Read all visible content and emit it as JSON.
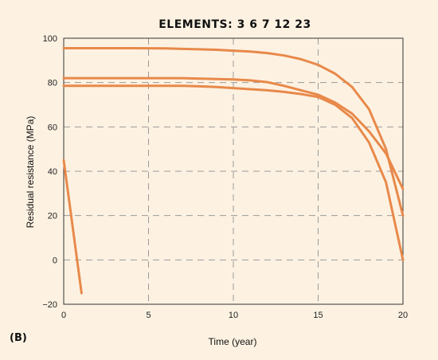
{
  "panel_label": "(B)",
  "chart_data": {
    "type": "line",
    "title": "ELEMENTS:  3  6  7  12  23",
    "xlabel": "Time (year)",
    "ylabel": "Residual resistance (MPa)",
    "xlim": [
      0,
      20
    ],
    "ylim": [
      -20,
      100
    ],
    "xticks": [
      0,
      5,
      10,
      15,
      20
    ],
    "yticks": [
      -20,
      0,
      20,
      40,
      60,
      80,
      100
    ],
    "grid": true,
    "grid_style": "dashed",
    "line_color": "#e8894a",
    "series": [
      {
        "x": [
          0,
          2,
          4,
          6,
          7,
          8,
          9,
          10,
          11,
          12,
          13,
          14,
          15,
          16,
          17,
          18,
          19,
          20
        ],
        "values": [
          95.5,
          95.5,
          95.5,
          95.4,
          95.2,
          95.0,
          94.8,
          94.4,
          94.0,
          93.3,
          92.2,
          90.5,
          88.0,
          84.0,
          78.0,
          68.0,
          50.0,
          20.0
        ]
      },
      {
        "x": [
          0,
          2,
          4,
          6,
          7,
          8,
          9,
          10,
          11,
          12,
          13,
          14,
          15,
          16,
          17,
          18,
          19,
          20
        ],
        "values": [
          82.0,
          82.0,
          82.0,
          82.0,
          82.0,
          81.8,
          81.6,
          81.4,
          81.0,
          80.2,
          78.5,
          76.5,
          74.5,
          71.0,
          66.0,
          58.0,
          48.0,
          32.0
        ]
      },
      {
        "x": [
          0,
          2,
          4,
          6,
          7,
          8,
          9,
          10,
          11,
          12,
          13,
          14,
          15,
          16,
          17,
          18,
          19,
          20
        ],
        "values": [
          78.5,
          78.5,
          78.5,
          78.5,
          78.5,
          78.3,
          78.0,
          77.5,
          77.0,
          76.5,
          75.8,
          74.8,
          73.5,
          70.0,
          64.0,
          53.0,
          35.0,
          0.0
        ]
      },
      {
        "x": [
          0,
          1.05
        ],
        "values": [
          45.0,
          -15.0
        ]
      }
    ]
  }
}
